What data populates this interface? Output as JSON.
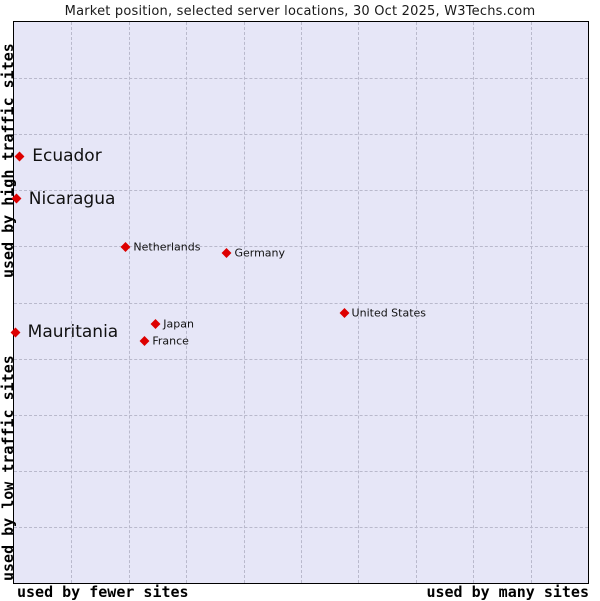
{
  "chart_data": {
    "type": "scatter",
    "title": "Market position, selected server locations, 30 Oct 2025, W3Techs.com",
    "axes": {
      "y_top": "used by high traffic sites",
      "y_bottom": "used by low traffic sites",
      "x_left": "used by fewer sites",
      "x_right": "used by many sites"
    },
    "xlim": [
      0,
      1
    ],
    "ylim": [
      0,
      1
    ],
    "grid": {
      "show": true,
      "x_divisions": 10,
      "y_divisions": 10,
      "style": "dashed"
    },
    "legend": "none",
    "marker": "diamond",
    "points": [
      {
        "label": "Ecuador",
        "x": 0.01,
        "y": 0.761,
        "label_size": "large"
      },
      {
        "label": "Nicaragua",
        "x": 0.004,
        "y": 0.685,
        "label_size": "large"
      },
      {
        "label": "Netherlands",
        "x": 0.195,
        "y": 0.599,
        "label_size": "small"
      },
      {
        "label": "Germany",
        "x": 0.371,
        "y": 0.588,
        "label_size": "small"
      },
      {
        "label": "United States",
        "x": 0.575,
        "y": 0.481,
        "label_size": "small"
      },
      {
        "label": "Japan",
        "x": 0.247,
        "y": 0.462,
        "label_size": "small"
      },
      {
        "label": "France",
        "x": 0.228,
        "y": 0.431,
        "label_size": "small"
      },
      {
        "label": "Mauritania",
        "x": 0.002,
        "y": 0.447,
        "label_size": "large"
      }
    ]
  },
  "colors": {
    "plot_background": "#e6e6f7",
    "gridline": "#b9b9cc",
    "marker": "#dd0000",
    "title_text": "#1a1a1a",
    "label_text": "#111111"
  }
}
